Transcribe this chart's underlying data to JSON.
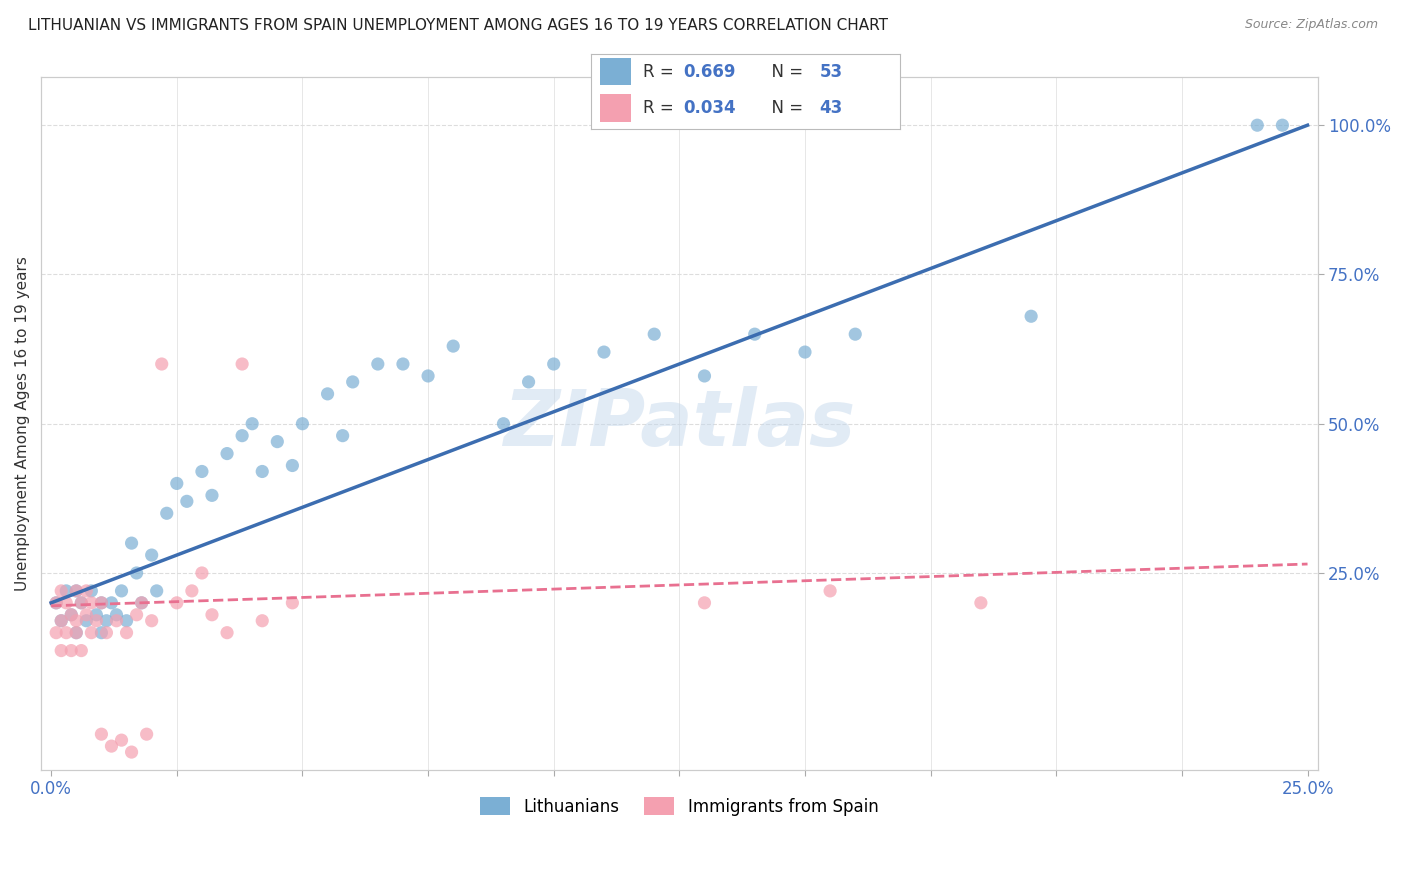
{
  "title": "LITHUANIAN VS IMMIGRANTS FROM SPAIN UNEMPLOYMENT AMONG AGES 16 TO 19 YEARS CORRELATION CHART",
  "source": "Source: ZipAtlas.com",
  "ylabel": "Unemployment Among Ages 16 to 19 years",
  "xlabel": "",
  "xlim": [
    -0.002,
    0.252
  ],
  "ylim": [
    -0.08,
    1.08
  ],
  "yticks_right": [
    0.25,
    0.5,
    0.75,
    1.0
  ],
  "ytick_right_labels": [
    "25.0%",
    "50.0%",
    "75.0%",
    "100.0%"
  ],
  "legend_r1_val": "0.669",
  "legend_n1_val": "53",
  "legend_r2_val": "0.034",
  "legend_n2_val": "43",
  "legend_label1": "Lithuanians",
  "legend_label2": "Immigrants from Spain",
  "blue_color": "#7BAFD4",
  "pink_color": "#F4A0B0",
  "blue_line_color": "#3C6DB0",
  "pink_line_color": "#E87090",
  "watermark": "ZIPatlas",
  "blue_scatter_x": [
    0.001,
    0.002,
    0.003,
    0.004,
    0.005,
    0.005,
    0.006,
    0.007,
    0.008,
    0.009,
    0.01,
    0.01,
    0.011,
    0.012,
    0.013,
    0.014,
    0.015,
    0.016,
    0.017,
    0.018,
    0.02,
    0.021,
    0.023,
    0.025,
    0.027,
    0.03,
    0.032,
    0.035,
    0.038,
    0.04,
    0.042,
    0.045,
    0.048,
    0.05,
    0.055,
    0.058,
    0.06,
    0.065,
    0.07,
    0.075,
    0.08,
    0.09,
    0.095,
    0.1,
    0.11,
    0.12,
    0.13,
    0.14,
    0.15,
    0.16,
    0.195,
    0.24,
    0.245
  ],
  "blue_scatter_y": [
    0.2,
    0.17,
    0.22,
    0.18,
    0.15,
    0.22,
    0.2,
    0.17,
    0.22,
    0.18,
    0.2,
    0.15,
    0.17,
    0.2,
    0.18,
    0.22,
    0.17,
    0.3,
    0.25,
    0.2,
    0.28,
    0.22,
    0.35,
    0.4,
    0.37,
    0.42,
    0.38,
    0.45,
    0.48,
    0.5,
    0.42,
    0.47,
    0.43,
    0.5,
    0.55,
    0.48,
    0.57,
    0.6,
    0.6,
    0.58,
    0.63,
    0.5,
    0.57,
    0.6,
    0.62,
    0.65,
    0.58,
    0.65,
    0.62,
    0.65,
    0.68,
    1.0,
    1.0
  ],
  "pink_scatter_x": [
    0.001,
    0.001,
    0.002,
    0.002,
    0.002,
    0.003,
    0.003,
    0.004,
    0.004,
    0.005,
    0.005,
    0.005,
    0.006,
    0.006,
    0.007,
    0.007,
    0.008,
    0.008,
    0.009,
    0.01,
    0.01,
    0.011,
    0.012,
    0.013,
    0.014,
    0.015,
    0.016,
    0.017,
    0.018,
    0.019,
    0.02,
    0.022,
    0.025,
    0.028,
    0.03,
    0.032,
    0.035,
    0.038,
    0.042,
    0.048,
    0.13,
    0.155,
    0.185
  ],
  "pink_scatter_y": [
    0.2,
    0.15,
    0.17,
    0.12,
    0.22,
    0.15,
    0.2,
    0.18,
    0.12,
    0.17,
    0.22,
    0.15,
    0.2,
    0.12,
    0.18,
    0.22,
    0.15,
    0.2,
    0.17,
    0.2,
    -0.02,
    0.15,
    -0.04,
    0.17,
    -0.03,
    0.15,
    -0.05,
    0.18,
    0.2,
    -0.02,
    0.17,
    0.6,
    0.2,
    0.22,
    0.25,
    0.18,
    0.15,
    0.6,
    0.17,
    0.2,
    0.2,
    0.22,
    0.2
  ],
  "blue_trend_x": [
    0.0,
    0.25
  ],
  "blue_trend_y": [
    0.2,
    1.0
  ],
  "pink_trend_x": [
    0.0,
    0.25
  ],
  "pink_trend_y": [
    0.195,
    0.265
  ],
  "background_color": "#FFFFFF",
  "grid_color": "#DDDDDD"
}
